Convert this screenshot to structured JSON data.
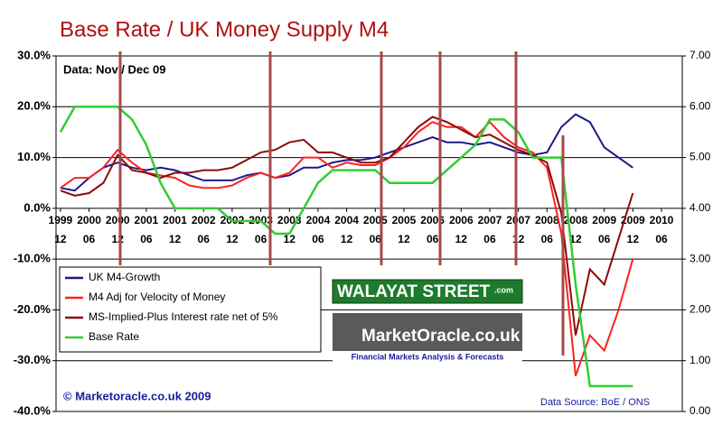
{
  "chart_data": {
    "type": "line",
    "title": "Base Rate / UK Money Supply M4",
    "subtitle": "Data: Nov / Dec 09",
    "annotations": {
      "copyright": "© Marketoracle.co.uk  2009",
      "source": "Data Source: BoE / ONS",
      "logo1": "WALAYAT STREET",
      "logo1_suffix": ".com",
      "logo2": "MarketOracle.co.uk",
      "logo2_tagline": "Financial Markets Analysis & Forecasts"
    },
    "x": [
      1999.917,
      2000.167,
      2000.417,
      2000.667,
      2000.917,
      2001.167,
      2001.417,
      2001.667,
      2001.917,
      2002.167,
      2002.417,
      2002.667,
      2002.917,
      2003.167,
      2003.417,
      2003.667,
      2003.917,
      2004.167,
      2004.417,
      2004.667,
      2004.917,
      2005.167,
      2005.417,
      2005.667,
      2005.917,
      2006.167,
      2006.417,
      2006.667,
      2006.917,
      2007.167,
      2007.417,
      2007.667,
      2007.917,
      2008.167,
      2008.417,
      2008.667,
      2008.917,
      2009.167,
      2009.417,
      2009.667,
      2009.917
    ],
    "series": [
      {
        "name": "UK M4-Growth",
        "color": "#1a1a8c",
        "values": [
          4,
          3.5,
          6,
          8,
          9,
          8,
          7.5,
          8,
          7.5,
          6.5,
          5.5,
          5.5,
          5.5,
          6.5,
          7,
          6,
          6.5,
          8,
          8,
          9,
          9.5,
          9.5,
          10,
          11,
          12,
          13,
          14,
          13,
          13,
          12.5,
          13,
          12,
          11,
          10.5,
          11,
          16,
          18.5,
          17,
          12,
          10,
          8
        ]
      },
      {
        "name": "M4 Adj for Velocity of Money",
        "color": "#ff2020",
        "values": [
          4,
          6,
          6,
          8,
          11.5,
          9,
          7,
          6.5,
          6,
          4.5,
          4,
          4,
          4.5,
          6,
          7,
          6,
          7,
          10,
          10,
          8,
          9,
          8.5,
          8.5,
          10,
          12,
          15,
          17,
          16,
          16,
          14,
          17,
          14,
          12,
          11,
          8,
          -5,
          -33,
          -25,
          -28,
          -20,
          -10
        ]
      },
      {
        "name": "MS-Implied-Plus Interest rate net of 5%",
        "color": "#8b0a0a",
        "values": [
          3.5,
          2.5,
          3,
          5,
          10.5,
          7.5,
          7,
          6,
          7,
          7,
          7.5,
          7.5,
          8,
          9.5,
          11,
          11.5,
          13,
          13.5,
          11,
          11,
          10,
          9,
          9,
          10,
          13,
          16,
          18,
          17,
          15.5,
          14,
          14.5,
          13,
          11.5,
          10.5,
          9,
          -1,
          -25,
          -12,
          -15,
          -6,
          3
        ]
      },
      {
        "name": "Base Rate",
        "color": "#33cc33",
        "axis": "y2",
        "values": [
          5.5,
          6,
          6,
          6,
          6,
          5.75,
          5.25,
          4.5,
          4,
          4,
          4,
          4,
          3.75,
          3.75,
          3.75,
          3.5,
          3.5,
          4,
          4.5,
          4.75,
          4.75,
          4.75,
          4.75,
          4.5,
          4.5,
          4.5,
          4.5,
          4.75,
          5,
          5.25,
          5.75,
          5.75,
          5.5,
          5,
          5,
          5,
          2.5,
          0.5,
          0.5,
          0.5,
          0.5
        ]
      }
    ],
    "xlim": [
      1999.84,
      2010.78
    ],
    "xticks": [
      {
        "value": 1999.917,
        "label": "1999",
        "sublabel": "12"
      },
      {
        "value": 2000.417,
        "label": "2000",
        "sublabel": "06"
      },
      {
        "value": 2000.917,
        "label": "2000",
        "sublabel": "12"
      },
      {
        "value": 2001.417,
        "label": "2001",
        "sublabel": "06"
      },
      {
        "value": 2001.917,
        "label": "2001",
        "sublabel": "12"
      },
      {
        "value": 2002.417,
        "label": "2002",
        "sublabel": "06"
      },
      {
        "value": 2002.917,
        "label": "2002",
        "sublabel": "12"
      },
      {
        "value": 2003.417,
        "label": "2003",
        "sublabel": "06"
      },
      {
        "value": 2003.917,
        "label": "2003",
        "sublabel": "12"
      },
      {
        "value": 2004.417,
        "label": "2004",
        "sublabel": "06"
      },
      {
        "value": 2004.917,
        "label": "2004",
        "sublabel": "12"
      },
      {
        "value": 2005.417,
        "label": "2005",
        "sublabel": "06"
      },
      {
        "value": 2005.917,
        "label": "2005",
        "sublabel": "12"
      },
      {
        "value": 2006.417,
        "label": "2006",
        "sublabel": "06"
      },
      {
        "value": 2006.917,
        "label": "2006",
        "sublabel": "12"
      },
      {
        "value": 2007.417,
        "label": "2007",
        "sublabel": "06"
      },
      {
        "value": 2007.917,
        "label": "2007",
        "sublabel": "12"
      },
      {
        "value": 2008.417,
        "label": "2008",
        "sublabel": "06"
      },
      {
        "value": 2008.917,
        "label": "2008",
        "sublabel": "12"
      },
      {
        "value": 2009.417,
        "label": "2009",
        "sublabel": "06"
      },
      {
        "value": 2009.917,
        "label": "2009",
        "sublabel": "12"
      },
      {
        "value": 2010.417,
        "label": "2010",
        "sublabel": "06"
      }
    ],
    "ylim": [
      -40,
      30
    ],
    "yticks": [
      {
        "value": 30,
        "label": "30.0%"
      },
      {
        "value": 20,
        "label": "20.0%"
      },
      {
        "value": 10,
        "label": "10.0%"
      },
      {
        "value": 0,
        "label": "0.0%"
      },
      {
        "value": -10,
        "label": "-10.0%"
      },
      {
        "value": -20,
        "label": "-20.0%"
      },
      {
        "value": -30,
        "label": "-30.0%"
      },
      {
        "value": -40,
        "label": "-40.0%"
      }
    ],
    "y2lim": [
      0,
      7
    ],
    "y2ticks": [
      {
        "value": 7,
        "label": "7.00"
      },
      {
        "value": 6,
        "label": "6.00"
      },
      {
        "value": 5,
        "label": "5.00"
      },
      {
        "value": 4,
        "label": "4.00"
      },
      {
        "value": 3,
        "label": "3.00"
      },
      {
        "value": 2,
        "label": "2.00"
      },
      {
        "value": 1,
        "label": "1.00"
      },
      {
        "value": 0,
        "label": "0.00"
      }
    ],
    "grid": true,
    "legend": "lower-left"
  }
}
